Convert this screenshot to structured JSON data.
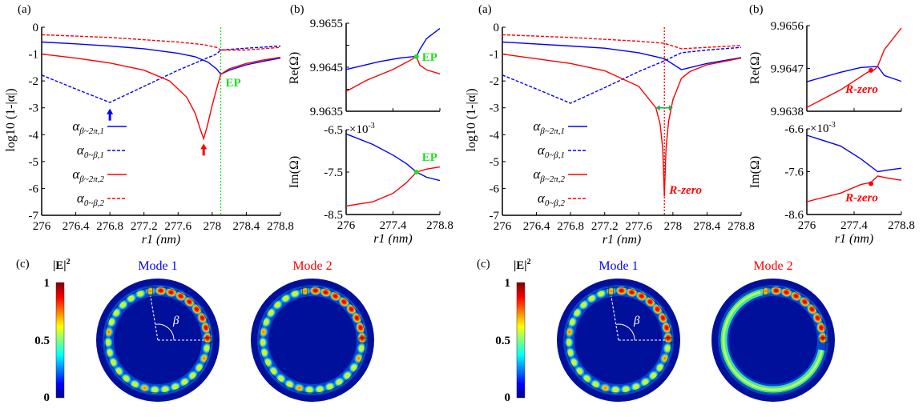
{
  "chart_data": [
    {
      "id": "left-a",
      "type": "line",
      "panel_label": "(a)",
      "ylabel": "log10 (1-|α|)",
      "xlabel": "r1 (nm)",
      "xlim": [
        276,
        278.8
      ],
      "ylim": [
        -7,
        0
      ],
      "xticks": [
        276,
        276.4,
        276.8,
        277.2,
        277.6,
        278,
        278.4,
        278.8
      ],
      "xtick_labels": [
        "276",
        "276.4",
        "276.8",
        "277.2",
        "277.6",
        "278",
        "278.4",
        "278.8"
      ],
      "yticks": [
        0,
        -1,
        -2,
        -3,
        -4,
        -5,
        -6,
        -7
      ],
      "ytick_labels": [
        "0",
        "-1",
        "-2",
        "-3",
        "-4",
        "-5",
        "-6",
        "-7"
      ],
      "marker_line": {
        "x": 278.1,
        "color": "#22dd22",
        "label": "EP"
      },
      "arrows": [
        {
          "x": 276.8,
          "y": -2.85,
          "color": "#0000ff"
        },
        {
          "x": 277.9,
          "y": -4.15,
          "color": "#ff0000"
        }
      ],
      "series": [
        {
          "name": "α β~2π,1",
          "symbol": "α",
          "sub": "β~2π,1",
          "color": "#0000ff",
          "dash": false,
          "x": [
            276,
            276.4,
            276.8,
            277.2,
            277.6,
            277.8,
            277.95,
            278.05,
            278.1,
            278.2,
            278.4,
            278.6,
            278.8
          ],
          "y": [
            -0.55,
            -0.62,
            -0.7,
            -0.8,
            -0.97,
            -1.1,
            -1.3,
            -1.55,
            -1.75,
            -1.6,
            -1.4,
            -1.27,
            -1.15
          ]
        },
        {
          "name": "α 0~β,1",
          "symbol": "α",
          "sub": "0~β,1",
          "color": "#0000ff",
          "dash": true,
          "x": [
            276,
            276.4,
            276.8,
            277.2,
            277.6,
            277.9,
            278.05,
            278.1,
            278.4,
            278.8
          ],
          "y": [
            -1.78,
            -2.3,
            -2.8,
            -2.2,
            -1.6,
            -1.2,
            -1.0,
            -0.85,
            -0.78,
            -0.7
          ]
        },
        {
          "name": "α β~2π,2",
          "symbol": "α",
          "sub": "β~2π,2",
          "color": "#ff0000",
          "dash": false,
          "x": [
            276,
            276.4,
            276.8,
            277.2,
            277.5,
            277.7,
            277.8,
            277.86,
            277.9,
            277.94,
            278.0,
            278.06,
            278.1,
            278.2,
            278.4,
            278.6,
            278.8
          ],
          "y": [
            -1.0,
            -1.15,
            -1.33,
            -1.6,
            -2.0,
            -2.6,
            -3.2,
            -3.8,
            -4.15,
            -3.7,
            -2.9,
            -2.2,
            -1.75,
            -1.55,
            -1.35,
            -1.22,
            -1.12
          ]
        },
        {
          "name": "α 0~β,2",
          "symbol": "α",
          "sub": "0~β,2",
          "color": "#ff0000",
          "dash": true,
          "x": [
            276,
            276.8,
            277.6,
            277.9,
            278.05,
            278.1,
            278.4,
            278.8
          ],
          "y": [
            -0.28,
            -0.38,
            -0.55,
            -0.65,
            -0.75,
            -0.85,
            -0.85,
            -0.75
          ]
        }
      ]
    },
    {
      "id": "left-b-re",
      "type": "line",
      "panel_label": "(b)",
      "ylabel": "Re(Ω)",
      "xlim": [
        276,
        278.8
      ],
      "ylim": [
        9.9635,
        9.9655
      ],
      "xticks": [
        276,
        277.4,
        278.8
      ],
      "xtick_labels": [],
      "yticks": [
        9.9655,
        9.965,
        9.9645,
        9.964,
        9.9635
      ],
      "ytick_labels": [
        "9.9655",
        "",
        "9.9645",
        "",
        "9.9635"
      ],
      "point": {
        "x": 278.1,
        "y": 9.96474,
        "color": "#22dd22",
        "label": "EP"
      },
      "series": [
        {
          "name": "Mode 1",
          "color": "#0000ff",
          "x": [
            276,
            277.0,
            277.6,
            278.0,
            278.1,
            278.2,
            278.4,
            278.8
          ],
          "y": [
            9.96445,
            9.96463,
            9.96471,
            9.96474,
            9.96474,
            9.9649,
            9.96515,
            9.96538
          ]
        },
        {
          "name": "Mode 2",
          "color": "#ff0000",
          "x": [
            276,
            276.6,
            277.4,
            277.9,
            278.1,
            278.2,
            278.4,
            278.8
          ],
          "y": [
            9.96395,
            9.9642,
            9.96445,
            9.96465,
            9.96474,
            9.96455,
            9.96444,
            9.96435
          ]
        }
      ]
    },
    {
      "id": "left-b-im",
      "type": "line",
      "ylabel": "Im(Ω)",
      "xlabel": "r1 (nm)",
      "multiplier": "×10",
      "multiplier_exp": "-3",
      "xlim": [
        276,
        278.8
      ],
      "ylim": [
        -8.5,
        -6.5
      ],
      "xticks": [
        276,
        277.4,
        278.8
      ],
      "xtick_labels": [
        "276",
        "277.4",
        "278.8"
      ],
      "yticks": [
        -6.5,
        -7.5,
        -8.5
      ],
      "ytick_labels": [
        "-6.5",
        "-7.5",
        "-8.5"
      ],
      "point": {
        "x": 278.1,
        "y": -7.5,
        "color": "#22dd22",
        "label": "EP"
      },
      "series": [
        {
          "name": "Mode 1",
          "color": "#0000ff",
          "x": [
            276,
            276.8,
            277.4,
            277.8,
            278.1,
            278.4,
            278.8
          ],
          "y": [
            -6.6,
            -6.85,
            -7.1,
            -7.3,
            -7.5,
            -7.62,
            -7.7
          ]
        },
        {
          "name": "Mode 2",
          "color": "#ff0000",
          "x": [
            276,
            276.8,
            277.4,
            277.8,
            278.1,
            278.4,
            278.8
          ],
          "y": [
            -8.3,
            -8.2,
            -8.0,
            -7.75,
            -7.5,
            -7.43,
            -7.38
          ]
        }
      ]
    },
    {
      "id": "right-a",
      "type": "line",
      "panel_label": "(a)",
      "ylabel": "log10 (1-|α|)",
      "xlabel": "r1 (nm)",
      "xlim": [
        276,
        278.8
      ],
      "ylim": [
        -7,
        0
      ],
      "xticks": [
        276,
        276.4,
        276.8,
        277.2,
        277.6,
        278,
        278.4,
        278.8
      ],
      "xtick_labels": [
        "276",
        "276.4",
        "276.8",
        "277.2",
        "277.6",
        "278",
        "278.4",
        "278.8"
      ],
      "yticks": [
        0,
        -1,
        -2,
        -3,
        -4,
        -5,
        -6,
        -7
      ],
      "ytick_labels": [
        "0",
        "-1",
        "-2",
        "-3",
        "-4",
        "-5",
        "-6",
        "-7"
      ],
      "marker_line": {
        "x": 277.9,
        "color": "#ff0000",
        "label": "R-zero"
      },
      "double_arrow": {
        "x1": 277.8,
        "x2": 278.0,
        "y": -3,
        "color": "#22aa55"
      },
      "series": [
        {
          "name": "α β~2π,1",
          "symbol": "α",
          "sub": "β~2π,1",
          "color": "#0000ff",
          "dash": false,
          "x": [
            276,
            276.8,
            277.2,
            277.6,
            277.9,
            278.1,
            278.4,
            278.8
          ],
          "y": [
            -0.55,
            -0.7,
            -0.78,
            -0.95,
            -1.17,
            -1.58,
            -1.35,
            -1.13
          ]
        },
        {
          "name": "α 0~β,1",
          "symbol": "α",
          "sub": "0~β,1",
          "color": "#0000ff",
          "dash": true,
          "x": [
            276,
            276.4,
            276.8,
            277.2,
            277.6,
            277.9,
            278.1,
            278.4,
            278.8
          ],
          "y": [
            -1.78,
            -2.3,
            -2.83,
            -2.25,
            -1.65,
            -1.25,
            -0.95,
            -0.85,
            -0.75
          ]
        },
        {
          "name": "α β~2π,2",
          "symbol": "α",
          "sub": "β~2π,2",
          "color": "#ff0000",
          "dash": false,
          "x": [
            276,
            276.8,
            277.2,
            277.6,
            277.8,
            277.85,
            277.88,
            277.9,
            277.92,
            277.95,
            278.0,
            278.1,
            278.2,
            278.4,
            278.8
          ],
          "y": [
            -1.0,
            -1.35,
            -1.62,
            -2.2,
            -3.0,
            -3.6,
            -4.5,
            -6.3,
            -4.5,
            -3.5,
            -2.7,
            -1.9,
            -1.65,
            -1.4,
            -1.15
          ]
        },
        {
          "name": "α 0~β,2",
          "symbol": "α",
          "sub": "0~β,2",
          "color": "#ff0000",
          "dash": true,
          "x": [
            276,
            276.8,
            277.6,
            277.9,
            278.1,
            278.4,
            278.8
          ],
          "y": [
            -0.28,
            -0.38,
            -0.52,
            -0.6,
            -0.8,
            -0.75,
            -0.68
          ]
        }
      ]
    },
    {
      "id": "right-b-re",
      "type": "line",
      "panel_label": "(b)",
      "ylabel": "Re(Ω)",
      "xlim": [
        276,
        278.8
      ],
      "ylim": [
        9.9638,
        9.9656
      ],
      "xticks": [
        276,
        277.4,
        278.8
      ],
      "xtick_labels": [],
      "yticks": [
        9.9656,
        9.9647,
        9.9638
      ],
      "ytick_labels": [
        "9.9656",
        "9.9647",
        "9.9638"
      ],
      "point": {
        "x": 277.9,
        "y": 9.96466,
        "color": "#ff0000",
        "label": "R-zero"
      },
      "series": [
        {
          "name": "Mode 1",
          "color": "#0000ff",
          "x": [
            276,
            277.0,
            277.6,
            278.1,
            278.3,
            278.8
          ],
          "y": [
            9.96442,
            9.96462,
            9.96472,
            9.96474,
            9.96455,
            9.96443
          ]
        },
        {
          "name": "Mode 2",
          "color": "#ff0000",
          "x": [
            276,
            277.0,
            277.8,
            278.0,
            278.1,
            278.3,
            278.8
          ],
          "y": [
            9.96388,
            9.96425,
            9.96462,
            9.96467,
            9.96475,
            9.9651,
            9.96555
          ]
        }
      ]
    },
    {
      "id": "right-b-im",
      "type": "line",
      "ylabel": "Im(Ω)",
      "xlabel": "r1 (nm)",
      "multiplier": "×10",
      "multiplier_exp": "-3",
      "xlim": [
        276,
        278.8
      ],
      "ylim": [
        -8.6,
        -6.6
      ],
      "xticks": [
        276,
        277.4,
        278.8
      ],
      "xtick_labels": [
        "276",
        "277.4",
        "278.8"
      ],
      "yticks": [
        -6.6,
        -7.6,
        -8.6
      ],
      "ytick_labels": [
        "-6.6",
        "-7.6",
        "-8.6"
      ],
      "point": {
        "x": 277.9,
        "y": -7.88,
        "color": "#ff0000",
        "label": "R-zero"
      },
      "series": [
        {
          "name": "Mode 1",
          "color": "#0000ff",
          "x": [
            276,
            277.0,
            277.6,
            278.1,
            278.4,
            278.8
          ],
          "y": [
            -6.75,
            -7.0,
            -7.3,
            -7.6,
            -7.56,
            -7.52
          ]
        },
        {
          "name": "Mode 2",
          "color": "#ff0000",
          "x": [
            276,
            277.0,
            277.6,
            277.9,
            278.1,
            278.4,
            278.8
          ],
          "y": [
            -8.3,
            -8.1,
            -7.9,
            -7.85,
            -7.7,
            -7.75,
            -7.8
          ]
        }
      ]
    }
  ],
  "field_maps": {
    "panel_label": "(c)",
    "colorbar": {
      "title": "|E|",
      "title_exp": "2",
      "tick_labels": [
        "1",
        "0.5",
        "0"
      ],
      "range": [
        0,
        1
      ]
    },
    "angle_label": "β",
    "left": [
      {
        "title": "Mode 1",
        "color": "#0000ff"
      },
      {
        "title": "Mode 2",
        "color": "#ff0000"
      }
    ],
    "right": [
      {
        "title": "Mode 1",
        "color": "#0000ff"
      },
      {
        "title": "Mode 2",
        "color": "#ff0000"
      }
    ]
  }
}
